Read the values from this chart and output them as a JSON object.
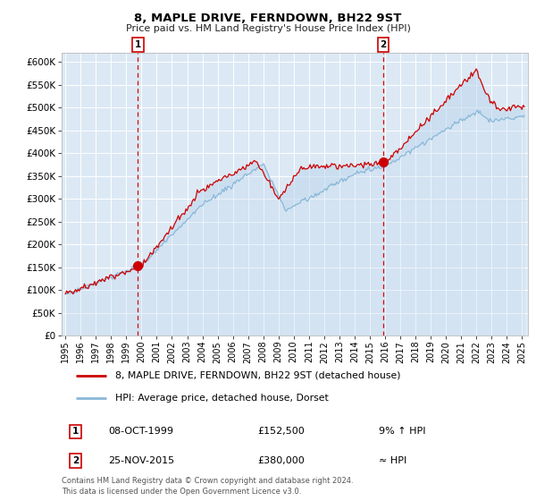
{
  "title": "8, MAPLE DRIVE, FERNDOWN, BH22 9ST",
  "subtitle": "Price paid vs. HM Land Registry's House Price Index (HPI)",
  "legend_line1": "8, MAPLE DRIVE, FERNDOWN, BH22 9ST (detached house)",
  "legend_line2": "HPI: Average price, detached house, Dorset",
  "annotation1_date": "08-OCT-1999",
  "annotation1_price": "£152,500",
  "annotation1_hpi": "9% ↑ HPI",
  "annotation2_date": "25-NOV-2015",
  "annotation2_price": "£380,000",
  "annotation2_hpi": "≈ HPI",
  "sale1_year": 1999.77,
  "sale1_value": 152500,
  "sale2_year": 2015.9,
  "sale2_value": 380000,
  "background_color": "#ffffff",
  "plot_bg_color": "#dce9f5",
  "grid_color": "#ffffff",
  "line1_color": "#cc0000",
  "line2_color": "#8ab8d8",
  "footer": "Contains HM Land Registry data © Crown copyright and database right 2024.\nThis data is licensed under the Open Government Licence v3.0.",
  "ylim": [
    0,
    620000
  ],
  "yticks": [
    0,
    50000,
    100000,
    150000,
    200000,
    250000,
    300000,
    350000,
    400000,
    450000,
    500000,
    550000,
    600000
  ],
  "xlim_start": 1994.75,
  "xlim_end": 2025.4
}
